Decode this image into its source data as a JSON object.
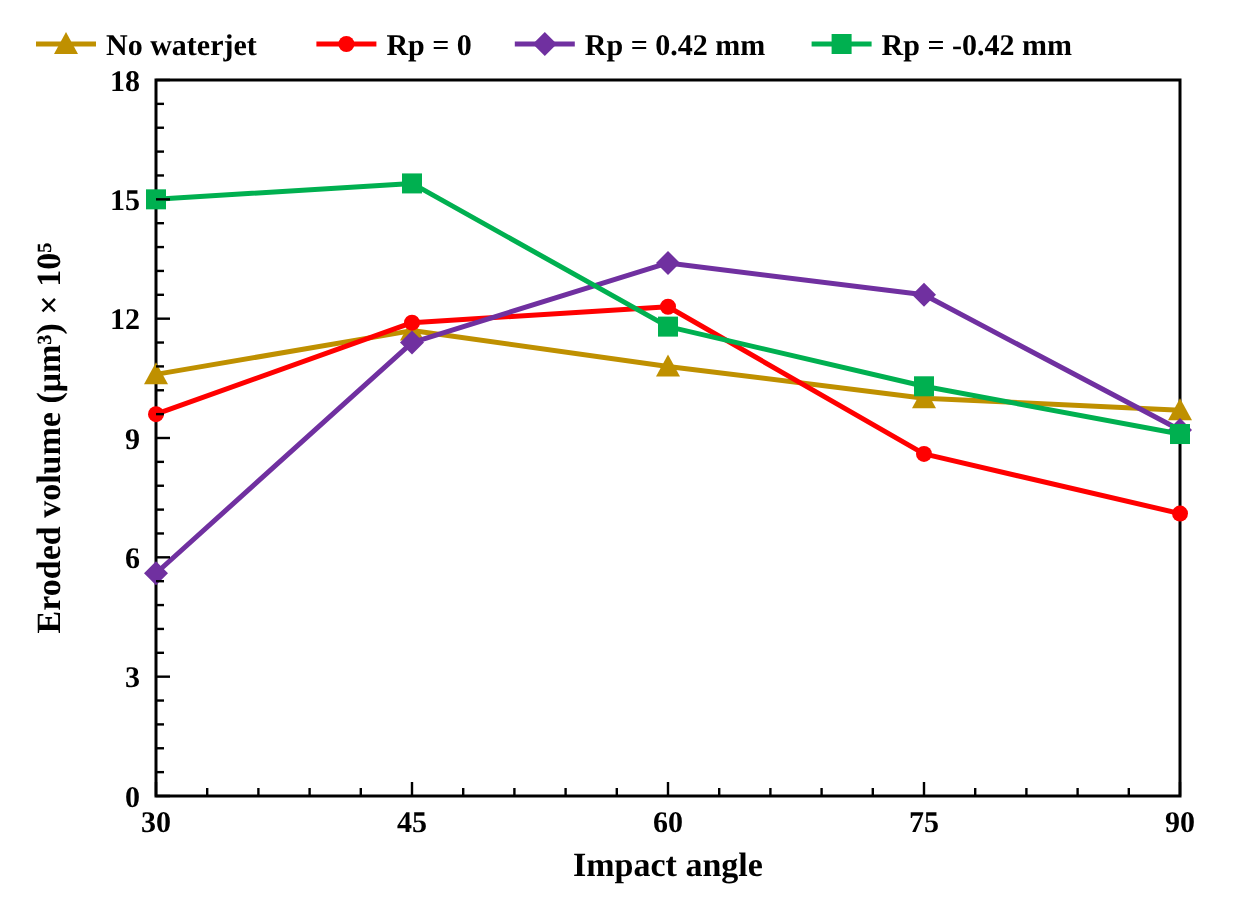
{
  "chart_data": {
    "type": "line",
    "xlabel": "Impact angle",
    "ylabel": "Eroded volume (μm³) × 10⁵",
    "x": [
      30,
      45,
      60,
      75,
      90
    ],
    "xlim": [
      30,
      90
    ],
    "xticks": [
      30,
      {
        "value": 33,
        "label": null
      },
      {
        "value": 36,
        "label": null
      },
      {
        "value": 39,
        "label": null
      },
      {
        "value": 42,
        "label": null
      },
      45,
      {
        "value": 48,
        "label": null
      },
      {
        "value": 51,
        "label": null
      },
      {
        "value": 54,
        "label": null
      },
      {
        "value": 57,
        "label": null
      },
      60,
      {
        "value": 63,
        "label": null
      },
      {
        "value": 66,
        "label": null
      },
      {
        "value": 69,
        "label": null
      },
      {
        "value": 72,
        "label": null
      },
      75,
      {
        "value": 78,
        "label": null
      },
      {
        "value": 81,
        "label": null
      },
      {
        "value": 84,
        "label": null
      },
      {
        "value": 87,
        "label": null
      },
      90
    ],
    "ylim": [
      0,
      18
    ],
    "yticks": [
      0,
      {
        "value": 0.6,
        "label": null
      },
      {
        "value": 1.2,
        "label": null
      },
      {
        "value": 1.8,
        "label": null
      },
      {
        "value": 2.4,
        "label": null
      },
      3,
      {
        "value": 3.6,
        "label": null
      },
      {
        "value": 4.2,
        "label": null
      },
      {
        "value": 4.8,
        "label": null
      },
      {
        "value": 5.4,
        "label": null
      },
      6,
      {
        "value": 6.6,
        "label": null
      },
      {
        "value": 7.2,
        "label": null
      },
      {
        "value": 7.8,
        "label": null
      },
      {
        "value": 8.4,
        "label": null
      },
      9,
      {
        "value": 9.6,
        "label": null
      },
      {
        "value": 10.2,
        "label": null
      },
      {
        "value": 10.8,
        "label": null
      },
      {
        "value": 11.4,
        "label": null
      },
      12,
      {
        "value": 12.6,
        "label": null
      },
      {
        "value": 13.2,
        "label": null
      },
      {
        "value": 13.8,
        "label": null
      },
      {
        "value": 14.4,
        "label": null
      },
      15,
      {
        "value": 15.6,
        "label": null
      },
      {
        "value": 16.2,
        "label": null
      },
      {
        "value": 16.8,
        "label": null
      },
      {
        "value": 17.4,
        "label": null
      },
      18
    ],
    "legend": "top",
    "grid": false,
    "line_style": "solid",
    "series": [
      {
        "name": "No waterjet",
        "color": "#bf9000",
        "marker": "triangle",
        "values": [
          10.6,
          11.7,
          10.8,
          10.0,
          9.7
        ]
      },
      {
        "name": "Rp = 0",
        "color": "#ff0000",
        "marker": "circle",
        "values": [
          9.6,
          11.9,
          12.3,
          8.6,
          7.1
        ]
      },
      {
        "name": "Rp = 0.42 mm",
        "color": "#7030a0",
        "marker": "diamond",
        "values": [
          5.6,
          11.4,
          13.4,
          12.6,
          9.2
        ]
      },
      {
        "name": "Rp = -0.42 mm",
        "color": "#00b050",
        "marker": "square",
        "values": [
          15.0,
          15.4,
          11.8,
          10.3,
          9.1
        ]
      }
    ]
  }
}
